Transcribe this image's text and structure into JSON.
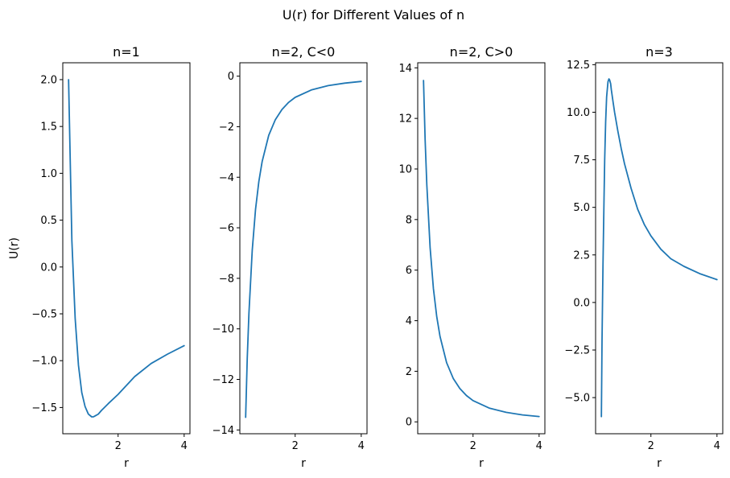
{
  "title": "U(r) for Different Values of n",
  "colors": {
    "line": "#1f77b4",
    "axes": "#000000",
    "background": "#ffffff"
  },
  "chart_data": [
    {
      "type": "line",
      "title": "n=1",
      "xlabel": "r",
      "ylabel": "U(r)",
      "xlim": [
        0.325,
        4.175
      ],
      "ylim": [
        -1.78,
        2.18
      ],
      "xticks": [
        2,
        4
      ],
      "yticks": [
        -1.5,
        -1.0,
        -0.5,
        0.0,
        0.5,
        1.0,
        1.5,
        2.0
      ],
      "ytick_labels": [
        "−1.5",
        "−1.0",
        "−0.5",
        "0.0",
        "0.5",
        "1.0",
        "1.5",
        "2.0"
      ],
      "grid": false,
      "series": [
        {
          "x": [
            0.5,
            0.6,
            0.7,
            0.8,
            0.9,
            1.0,
            1.1,
            1.2,
            1.25,
            1.3,
            1.4,
            1.5,
            1.7,
            2.0,
            2.5,
            3.0,
            3.5,
            4.0
          ],
          "values": [
            2.0,
            0.28,
            -0.55,
            -1.05,
            -1.34,
            -1.49,
            -1.57,
            -1.6,
            -1.6,
            -1.59,
            -1.57,
            -1.53,
            -1.46,
            -1.36,
            -1.17,
            -1.03,
            -0.93,
            -0.84
          ]
        }
      ]
    },
    {
      "type": "line",
      "title": "n=2, C<0",
      "xlabel": "r",
      "ylabel": "",
      "xlim": [
        0.325,
        4.175
      ],
      "ylim": [
        -14.15,
        0.53
      ],
      "xticks": [
        2,
        4
      ],
      "yticks": [
        -14,
        -12,
        -10,
        -8,
        -6,
        -4,
        -2,
        0
      ],
      "ytick_labels": [
        "−14",
        "−12",
        "−10",
        "−8",
        "−6",
        "−4",
        "−2",
        "0"
      ],
      "grid": false,
      "series": [
        {
          "x": [
            0.5,
            0.55,
            0.6,
            0.7,
            0.8,
            0.9,
            1.0,
            1.2,
            1.4,
            1.6,
            1.8,
            2.0,
            2.5,
            3.0,
            3.5,
            4.0
          ],
          "values": [
            -13.5,
            -11.16,
            -9.38,
            -6.89,
            -5.27,
            -4.17,
            -3.38,
            -2.34,
            -1.72,
            -1.32,
            -1.04,
            -0.84,
            -0.54,
            -0.375,
            -0.276,
            -0.21
          ]
        }
      ]
    },
    {
      "type": "line",
      "title": "n=2, C>0",
      "xlabel": "r",
      "ylabel": "",
      "xlim": [
        0.325,
        4.175
      ],
      "ylim": [
        -0.47,
        14.2
      ],
      "xticks": [
        2,
        4
      ],
      "yticks": [
        0,
        2,
        4,
        6,
        8,
        10,
        12,
        14
      ],
      "ytick_labels": [
        "0",
        "2",
        "4",
        "6",
        "8",
        "10",
        "12",
        "14"
      ],
      "grid": false,
      "series": [
        {
          "x": [
            0.5,
            0.55,
            0.6,
            0.7,
            0.8,
            0.9,
            1.0,
            1.2,
            1.4,
            1.6,
            1.8,
            2.0,
            2.5,
            3.0,
            3.5,
            4.0
          ],
          "values": [
            13.5,
            11.16,
            9.38,
            6.89,
            5.27,
            4.17,
            3.38,
            2.34,
            1.72,
            1.32,
            1.04,
            0.84,
            0.54,
            0.375,
            0.276,
            0.21
          ]
        }
      ]
    },
    {
      "type": "line",
      "title": "n=3",
      "xlabel": "r",
      "ylabel": "",
      "xlim": [
        0.325,
        4.175
      ],
      "ylim": [
        -6.9,
        12.6
      ],
      "xticks": [
        2,
        4
      ],
      "yticks": [
        -5.0,
        -2.5,
        0.0,
        2.5,
        5.0,
        7.5,
        10.0,
        12.5
      ],
      "ytick_labels": [
        "−5.0",
        "−2.5",
        "0.0",
        "2.5",
        "5.0",
        "7.5",
        "10.0",
        "12.5"
      ],
      "grid": false,
      "series": [
        {
          "x": [
            0.5,
            0.52,
            0.55,
            0.58,
            0.6,
            0.63,
            0.66,
            0.7,
            0.73,
            0.75,
            0.78,
            0.8,
            0.85,
            0.9,
            1.0,
            1.1,
            1.2,
            1.4,
            1.6,
            1.8,
            2.0,
            2.3,
            2.6,
            3.0,
            3.5,
            4.0
          ],
          "values": [
            -6.0,
            -2.0,
            2.0,
            5.5,
            7.5,
            9.5,
            10.8,
            11.6,
            11.75,
            11.7,
            11.5,
            11.2,
            10.6,
            10.0,
            9.0,
            8.1,
            7.3,
            6.0,
            4.9,
            4.1,
            3.5,
            2.8,
            2.3,
            1.9,
            1.5,
            1.2
          ]
        }
      ]
    }
  ]
}
